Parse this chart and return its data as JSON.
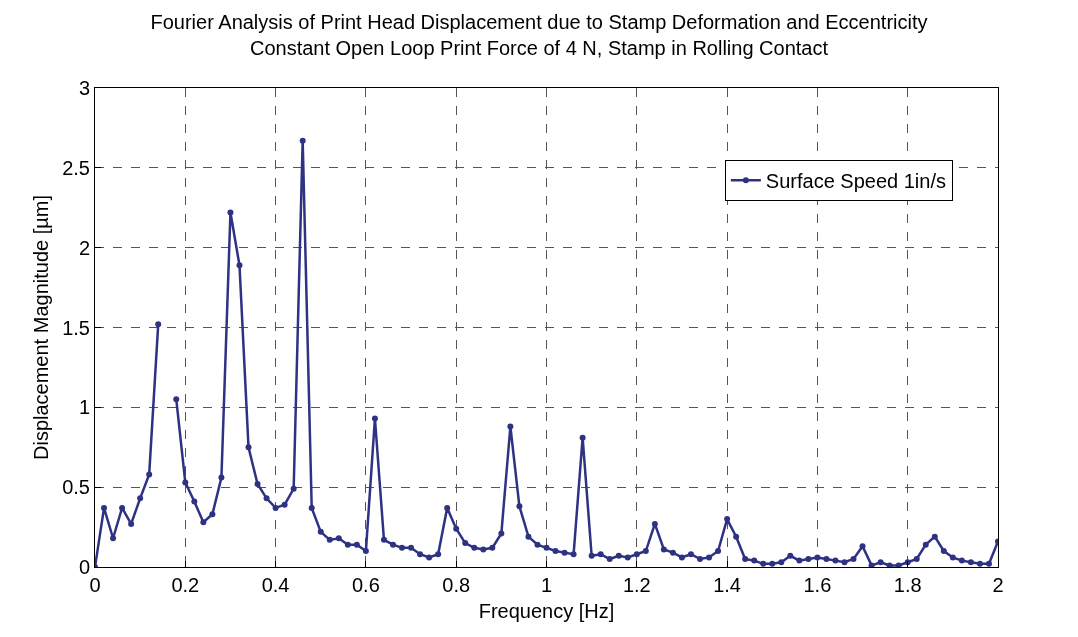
{
  "chart_data": {
    "type": "line",
    "title": "Fourier Analysis of Print Head Displacement due to Stamp Deformation and Eccentricity",
    "subtitle": "Constant Open Loop Print Force of 4 N, Stamp in Rolling Contact",
    "xlabel": "Frequency [Hz]",
    "ylabel": "Displacement Magnitude [µm]",
    "x": [
      0,
      0.02,
      0.04,
      0.06,
      0.08,
      0.1,
      0.12,
      0.14,
      0.16,
      0.18,
      0.2,
      0.22,
      0.24,
      0.26,
      0.28,
      0.3,
      0.32,
      0.34,
      0.36,
      0.38,
      0.4,
      0.42,
      0.44,
      0.46,
      0.48,
      0.5,
      0.52,
      0.54,
      0.56,
      0.58,
      0.6,
      0.62,
      0.64,
      0.66,
      0.68,
      0.7,
      0.72,
      0.74,
      0.76,
      0.78,
      0.8,
      0.82,
      0.84,
      0.86,
      0.88,
      0.9,
      0.92,
      0.94,
      0.96,
      0.98,
      1,
      1.02,
      1.04,
      1.06,
      1.08,
      1.1,
      1.12,
      1.14,
      1.16,
      1.18,
      1.2,
      1.22,
      1.24,
      1.26,
      1.28,
      1.3,
      1.32,
      1.34,
      1.36,
      1.38,
      1.4,
      1.42,
      1.44,
      1.46,
      1.48,
      1.5,
      1.52,
      1.54,
      1.56,
      1.58,
      1.6,
      1.62,
      1.64,
      1.66,
      1.68,
      1.7,
      1.72,
      1.74,
      1.76,
      1.78,
      1.8,
      1.82,
      1.84,
      1.86,
      1.88,
      1.9,
      1.92,
      1.94,
      1.96,
      1.98,
      2
    ],
    "series": [
      {
        "name": "Surface Speed 1in/s",
        "color": "#2e3283",
        "values": [
          0,
          0.37,
          0.18,
          0.37,
          0.27,
          0.43,
          0.58,
          1.52,
          null,
          1.05,
          0.53,
          0.41,
          0.28,
          0.33,
          0.56,
          2.22,
          1.89,
          0.75,
          0.52,
          0.43,
          0.37,
          0.39,
          0.49,
          2.67,
          0.37,
          0.22,
          0.17,
          0.18,
          0.14,
          0.14,
          0.1,
          0.93,
          0.17,
          0.14,
          0.12,
          0.12,
          0.08,
          0.06,
          0.08,
          0.37,
          0.24,
          0.15,
          0.12,
          0.11,
          0.12,
          0.21,
          0.88,
          0.38,
          0.19,
          0.14,
          0.12,
          0.1,
          0.09,
          0.08,
          0.81,
          0.07,
          0.08,
          0.05,
          0.07,
          0.06,
          0.08,
          0.1,
          0.27,
          0.11,
          0.09,
          0.06,
          0.08,
          0.05,
          0.06,
          0.1,
          0.3,
          0.19,
          0.05,
          0.04,
          0.02,
          0.02,
          0.03,
          0.07,
          0.04,
          0.05,
          0.06,
          0.05,
          0.04,
          0.03,
          0.05,
          0.13,
          0.01,
          0.03,
          0.01,
          0.01,
          0.03,
          0.05,
          0.14,
          0.19,
          0.1,
          0.06,
          0.04,
          0.03,
          0.02,
          0.02,
          0.16
        ]
      }
    ],
    "xlim": [
      0,
      2
    ],
    "xticks": [
      0,
      0.2,
      0.4,
      0.6,
      0.8,
      1,
      1.2,
      1.4,
      1.6,
      1.8,
      2
    ],
    "ylim": [
      0,
      3
    ],
    "yticks": [
      0,
      0.5,
      1,
      1.5,
      2,
      2.5,
      3
    ],
    "grid": true,
    "legend": "top right",
    "marker": "circle",
    "line_style": "solid"
  }
}
